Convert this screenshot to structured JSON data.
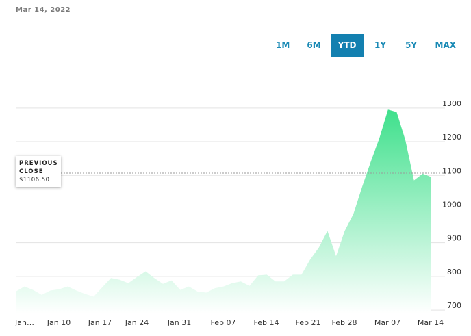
{
  "header": {
    "date": "Mar 14, 2022"
  },
  "range_tabs": [
    {
      "label": "1M",
      "active": false
    },
    {
      "label": "6M",
      "active": false
    },
    {
      "label": "YTD",
      "active": true
    },
    {
      "label": "1Y",
      "active": false
    },
    {
      "label": "5Y",
      "active": false
    },
    {
      "label": "MAX",
      "active": false
    }
  ],
  "previous_close": {
    "title_line1": "PREVIOUS",
    "title_line2": "CLOSE",
    "value": "$1106.50",
    "numeric": 1106.5
  },
  "colors": {
    "area_top": "#3fe08c",
    "area_bottom": "#ffffff",
    "active_tab": "#1380b0",
    "tab_text": "#1a8ab5"
  },
  "chart_data": {
    "type": "area",
    "x_tick_labels": [
      "Jan…",
      "Jan 10",
      "Jan 17",
      "Jan 24",
      "Jan 31",
      "Feb 07",
      "Feb 14",
      "Feb 21",
      "Feb 28",
      "Mar 07",
      "Mar 14"
    ],
    "y_ticks": [
      700,
      800,
      900,
      1000,
      1100,
      1200,
      1300
    ],
    "ylim": [
      690,
      1320
    ],
    "grid": true,
    "reference_line": 1106.5,
    "values": [
      755,
      770,
      760,
      745,
      758,
      762,
      770,
      758,
      748,
      740,
      768,
      795,
      790,
      780,
      798,
      815,
      795,
      778,
      788,
      760,
      770,
      755,
      752,
      765,
      770,
      780,
      785,
      772,
      803,
      805,
      785,
      785,
      805,
      805,
      850,
      885,
      935,
      860,
      935,
      985,
      1065,
      1140,
      1210,
      1295,
      1288,
      1205,
      1085,
      1105,
      1095
    ]
  }
}
